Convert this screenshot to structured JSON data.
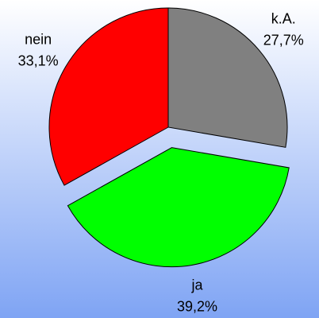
{
  "chart_data": {
    "type": "pie",
    "categories": [
      "k.A.",
      "ja",
      "nein"
    ],
    "values": [
      27.7,
      39.2,
      33.1
    ],
    "value_labels": [
      "27,7%",
      "39,2%",
      "33,1%"
    ],
    "colors": [
      "#808080",
      "#00ff00",
      "#ff0000"
    ],
    "explode": [
      false,
      true,
      false
    ]
  }
}
